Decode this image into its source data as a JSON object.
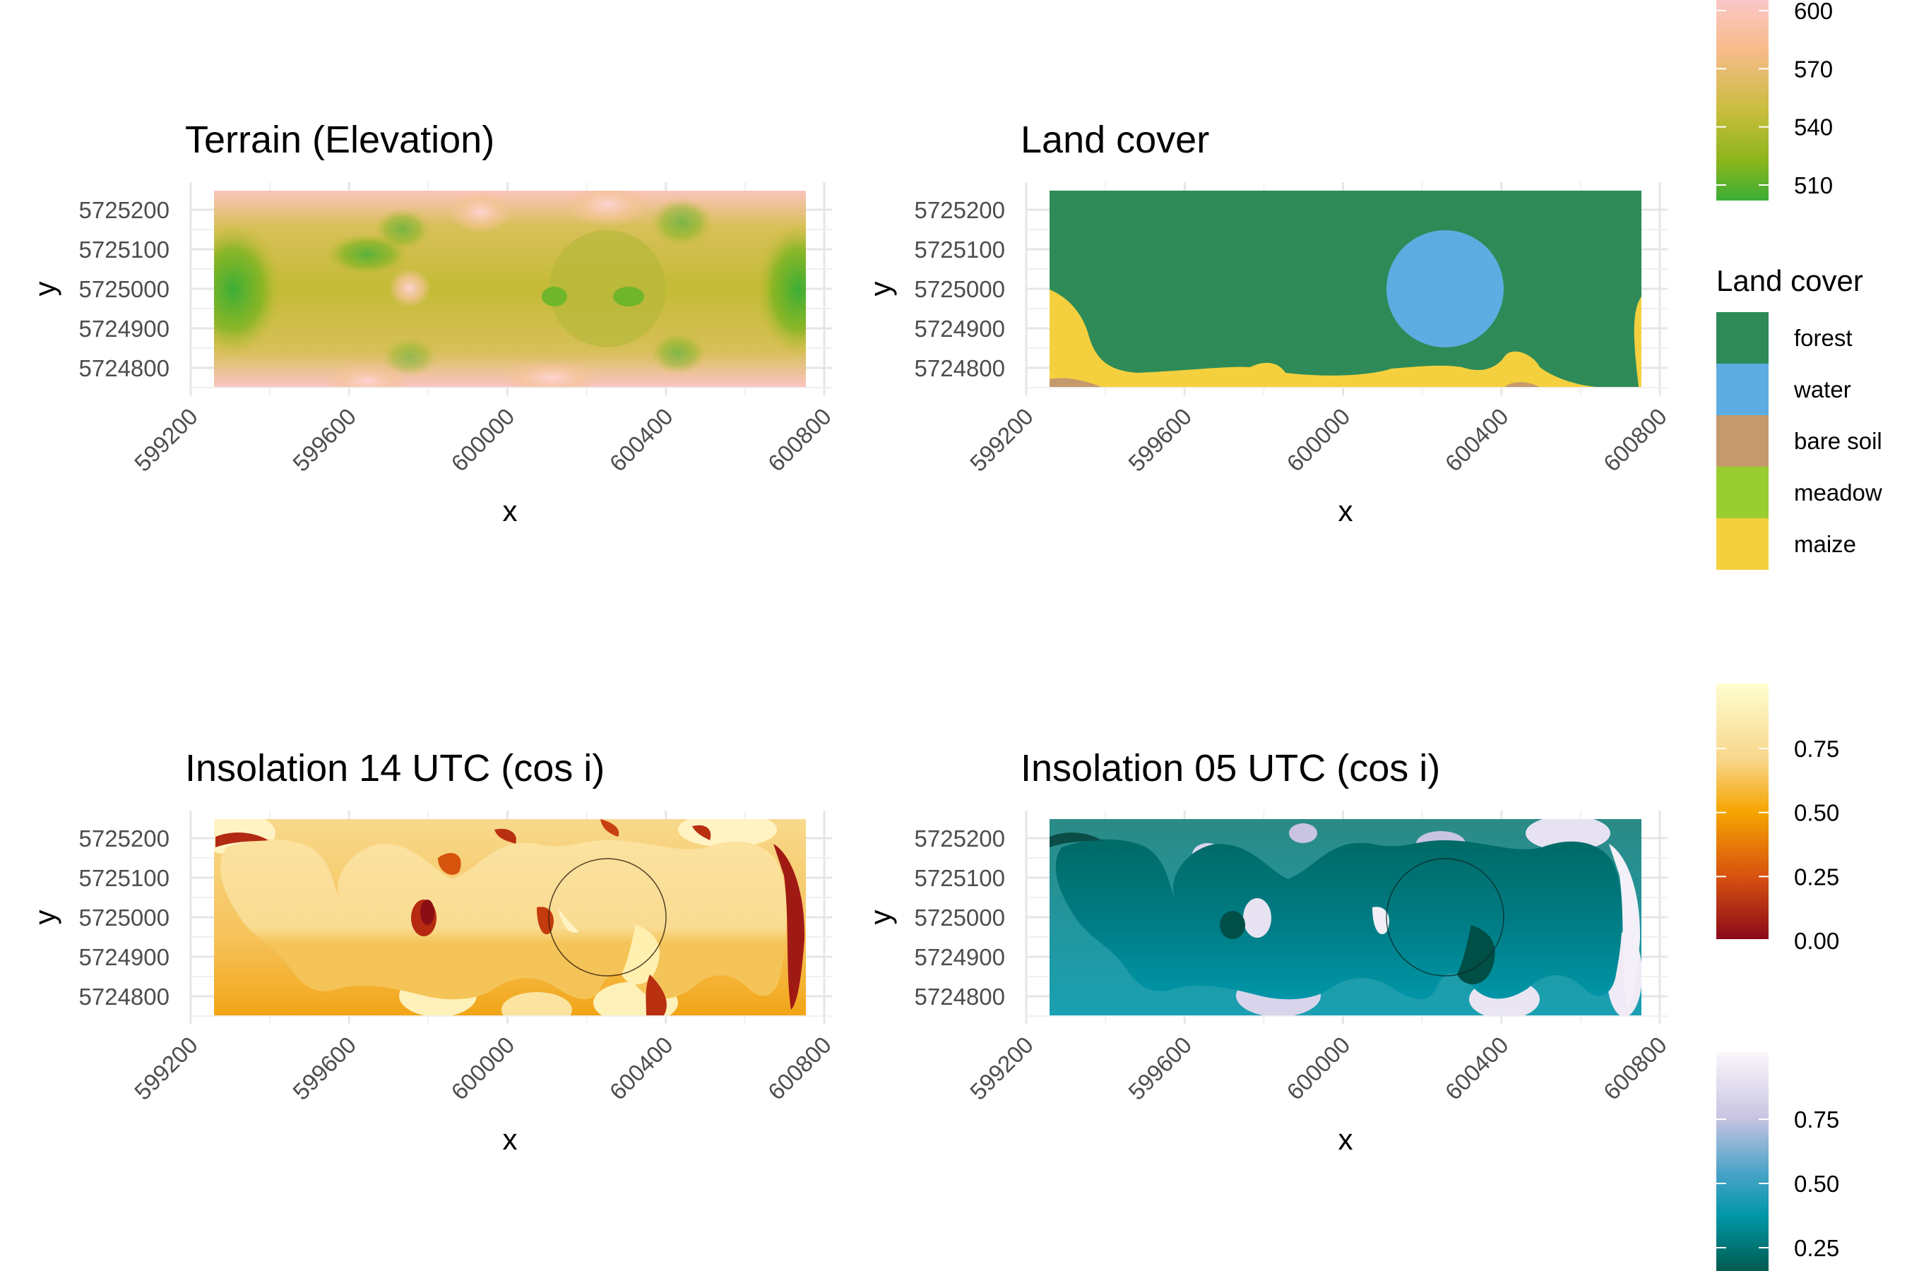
{
  "panels": [
    {
      "title": "Terrain (Elevation)",
      "xlabel": "x",
      "ylabel": "y",
      "xticks": [
        "599200",
        "599600",
        "600000",
        "600400",
        "600800"
      ],
      "yticks": [
        "5725200",
        "5725100",
        "5725000",
        "5724900",
        "5724800"
      ]
    },
    {
      "title": "Land cover",
      "xlabel": "x",
      "ylabel": "y",
      "xticks": [
        "599200",
        "599600",
        "600000",
        "600400",
        "600800"
      ],
      "yticks": [
        "5725200",
        "5725100",
        "5725000",
        "5724900",
        "5724800"
      ]
    },
    {
      "title": "Insolation 14 UTC (cos i)",
      "xlabel": "x",
      "ylabel": "y",
      "xticks": [
        "599200",
        "599600",
        "600000",
        "600400",
        "600800"
      ],
      "yticks": [
        "5725200",
        "5725100",
        "5725000",
        "5724900",
        "5724800"
      ]
    },
    {
      "title": "Insolation 05 UTC (cos i)",
      "xlabel": "x",
      "ylabel": "y",
      "xticks": [
        "599200",
        "599600",
        "600000",
        "600400",
        "600800"
      ],
      "yticks": [
        "5725200",
        "5725100",
        "5725000",
        "5724900",
        "5724800"
      ]
    }
  ],
  "legends": {
    "elevation": {
      "labels": [
        "600",
        "570",
        "540",
        "510"
      ],
      "values": [
        600,
        570,
        540,
        510
      ],
      "colors": [
        "#fbc7c7",
        "#f7bb8a",
        "#c9bd3d",
        "#8db51c",
        "#3aae36"
      ]
    },
    "landcover": {
      "title": "Land cover",
      "items": [
        {
          "label": "forest",
          "color": "#2e8b57"
        },
        {
          "label": "water",
          "color": "#5dade2"
        },
        {
          "label": "bare soil",
          "color": "#c49a6c"
        },
        {
          "label": "meadow",
          "color": "#9acd32"
        },
        {
          "label": "maize",
          "color": "#f4d03f"
        }
      ]
    },
    "insolation14": {
      "labels": [
        "0.75",
        "0.50",
        "0.25",
        "0.00"
      ],
      "values": [
        0.75,
        0.5,
        0.25,
        0.0
      ],
      "colors": [
        "#fffdd0",
        "#f8d68a",
        "#f5a500",
        "#d9530f",
        "#8b0a1a"
      ]
    },
    "insolation05": {
      "labels": [
        "0.75",
        "0.50",
        "0.25"
      ],
      "values": [
        0.75,
        0.5,
        0.25
      ],
      "colors": [
        "#fbf6fb",
        "#c9c4e2",
        "#4aa3c8",
        "#0097a7",
        "#005b4f"
      ]
    }
  },
  "chart_data": [
    {
      "type": "heatmap",
      "title": "Terrain (Elevation)",
      "xlabel": "x",
      "ylabel": "y",
      "xlim": [
        599250,
        600750
      ],
      "ylim": [
        5724750,
        5725250
      ],
      "value_range": [
        500,
        610
      ]
    },
    {
      "type": "heatmap",
      "title": "Land cover",
      "xlabel": "x",
      "ylabel": "y",
      "xlim": [
        599250,
        600750
      ],
      "ylim": [
        5724750,
        5725250
      ],
      "categories": [
        "forest",
        "water",
        "bare soil",
        "meadow",
        "maize"
      ]
    },
    {
      "type": "heatmap",
      "title": "Insolation 14 UTC (cos i)",
      "xlabel": "x",
      "ylabel": "y",
      "xlim": [
        599250,
        600750
      ],
      "ylim": [
        5724750,
        5725250
      ],
      "value_range": [
        0.0,
        1.0
      ]
    },
    {
      "type": "heatmap",
      "title": "Insolation 05 UTC (cos i)",
      "xlabel": "x",
      "ylabel": "y",
      "xlim": [
        599250,
        600750
      ],
      "ylim": [
        5724750,
        5725250
      ],
      "value_range": [
        0.0,
        1.0
      ]
    }
  ]
}
